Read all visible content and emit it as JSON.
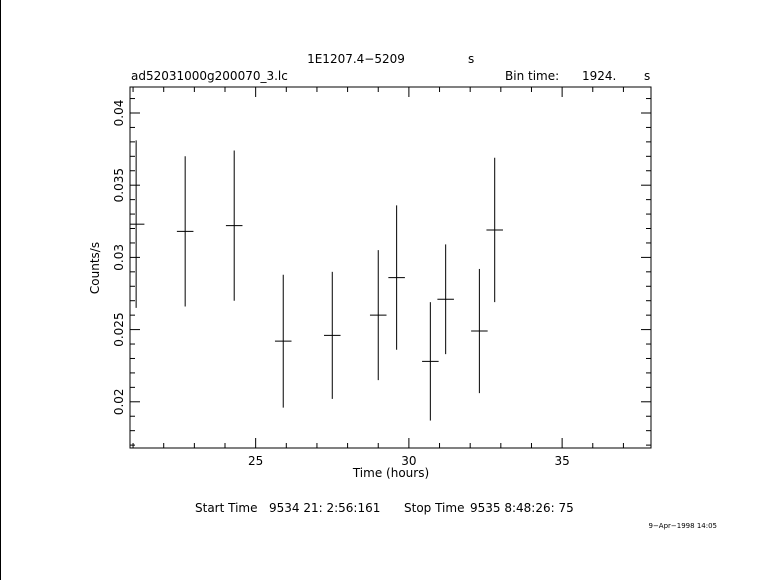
{
  "chart_data": {
    "type": "scatter",
    "title": "1E1207.4−5209",
    "title_suffix": "s",
    "file_label": "ad52031000g200070_3.lc",
    "bin_time_label": "Bin time:",
    "bin_time_value": "1924.",
    "bin_time_unit": "s",
    "xlabel": "Time (hours)",
    "ylabel": "Counts/s",
    "xlim": [
      20.9,
      37.9
    ],
    "ylim": [
      0.0168,
      0.0418
    ],
    "x_ticks": [
      "25",
      "30",
      "35"
    ],
    "y_ticks": [
      "0.02",
      "0.025",
      "0.03",
      "0.035",
      "0.04"
    ],
    "grid": false,
    "series": [
      {
        "points": [
          {
            "x": 21.1,
            "xerr": 0.27,
            "y": 0.0323,
            "yerr": 0.0058
          },
          {
            "x": 22.7,
            "xerr": 0.27,
            "y": 0.0318,
            "yerr": 0.0052
          },
          {
            "x": 24.3,
            "xerr": 0.27,
            "y": 0.0322,
            "yerr": 0.0052
          },
          {
            "x": 25.9,
            "xerr": 0.27,
            "y": 0.0242,
            "yerr": 0.0046
          },
          {
            "x": 27.5,
            "xerr": 0.27,
            "y": 0.0246,
            "yerr": 0.0044
          },
          {
            "x": 29.0,
            "xerr": 0.27,
            "y": 0.026,
            "yerr": 0.0045
          },
          {
            "x": 29.6,
            "xerr": 0.27,
            "y": 0.0286,
            "yerr": 0.005
          },
          {
            "x": 30.7,
            "xerr": 0.27,
            "y": 0.0228,
            "yerr": 0.0041
          },
          {
            "x": 31.2,
            "xerr": 0.27,
            "y": 0.0271,
            "yerr": 0.0038
          },
          {
            "x": 32.3,
            "xerr": 0.27,
            "y": 0.0249,
            "yerr": 0.0043
          },
          {
            "x": 32.8,
            "xerr": 0.27,
            "y": 0.0319,
            "yerr": 0.005
          }
        ]
      }
    ]
  },
  "footer": {
    "start_label": "Start Time",
    "start_value": "9534 21: 2:56:161",
    "stop_label": "Stop Time",
    "stop_value": "9535  8:48:26: 75",
    "timestamp": "9−Apr−1998 14:05"
  }
}
